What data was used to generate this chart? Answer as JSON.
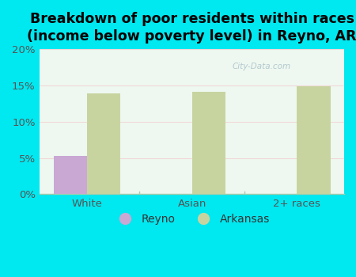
{
  "title": "Breakdown of poor residents within races\n(income below poverty level) in Reyno, AR",
  "categories": [
    "White",
    "Asian",
    "2+ races"
  ],
  "reyno_values": [
    5.3,
    0,
    0
  ],
  "arkansas_values": [
    13.9,
    14.1,
    14.9
  ],
  "reyno_color": "#c9a8d4",
  "arkansas_color": "#c8d4a0",
  "background_outer": "#00e8f0",
  "background_inner_top": "#e8f5ee",
  "background_inner_bottom": "#f5fff8",
  "ylim": [
    0,
    20
  ],
  "yticks": [
    0,
    5,
    10,
    15,
    20
  ],
  "ytick_labels": [
    "0%",
    "5%",
    "10%",
    "15%",
    "20%"
  ],
  "bar_width": 0.32,
  "legend_labels": [
    "Reyno",
    "Arkansas"
  ],
  "title_fontsize": 12.5,
  "tick_fontsize": 9.5,
  "legend_fontsize": 10,
  "tick_color": "#555555",
  "grid_color": "#ddeecc",
  "separator_color": "#aaccaa"
}
